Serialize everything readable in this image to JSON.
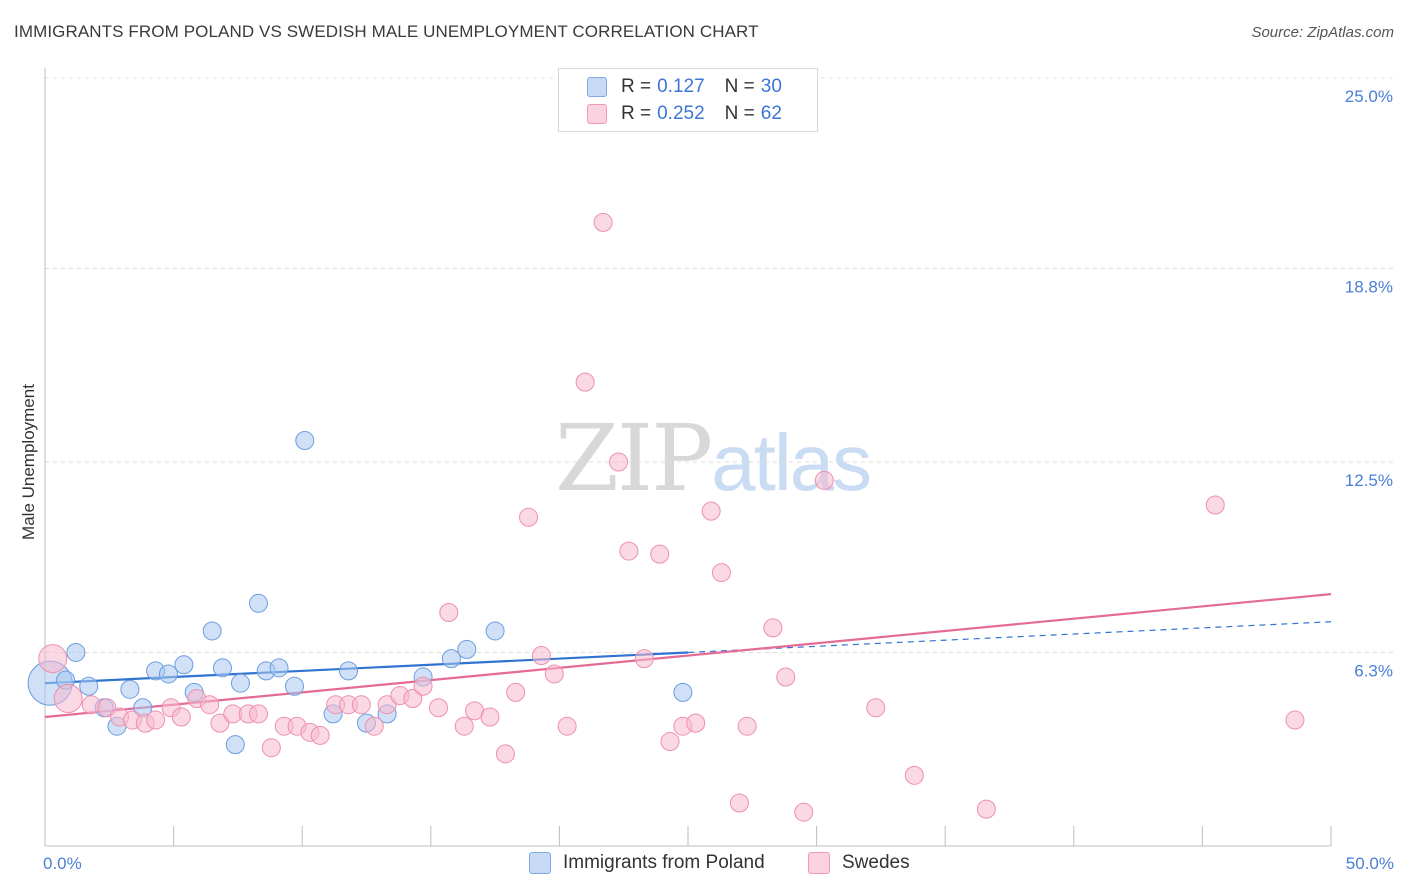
{
  "header": {
    "title": "IMMIGRANTS FROM POLAND VS SWEDISH MALE UNEMPLOYMENT CORRELATION CHART",
    "source": "Source: ZipAtlas.com"
  },
  "watermark": {
    "zip": "ZIP",
    "atlas": "atlas"
  },
  "legend": {
    "rows": [
      {
        "r_label": "R =",
        "r_value": "0.127",
        "n_label": "N =",
        "n_value": "30",
        "color": "#a9c8f0"
      },
      {
        "r_label": "R =",
        "r_value": "0.252",
        "n_label": "N =",
        "n_value": "62",
        "color": "#f7b9cd"
      }
    ]
  },
  "bottom_legend": [
    {
      "label": "Immigrants from Poland",
      "color": "#a9c8f0"
    },
    {
      "label": "Swedes",
      "color": "#f7b9cd"
    }
  ],
  "chart_data": {
    "type": "scatter",
    "title": "IMMIGRANTS FROM POLAND VS SWEDISH MALE UNEMPLOYMENT CORRELATION CHART",
    "xlabel": "",
    "ylabel": "Male Unemployment",
    "xlim": [
      0,
      50
    ],
    "ylim": [
      0,
      25
    ],
    "x_tick_labels": [
      {
        "value": 0,
        "label": "0.0%"
      },
      {
        "value": 50,
        "label": "50.0%"
      }
    ],
    "y_tick_labels": [
      {
        "value": 6.3,
        "label": "6.3%"
      },
      {
        "value": 12.5,
        "label": "12.5%"
      },
      {
        "value": 18.8,
        "label": "18.8%"
      },
      {
        "value": 25.0,
        "label": "25.0%"
      }
    ],
    "series": [
      {
        "name": "Immigrants from Poland",
        "color": "#a9c8f0",
        "stroke": "#6c9de0",
        "trend": {
          "x0": 0,
          "y0": 5.3,
          "x1": 25,
          "y1": 6.3,
          "dashed_to_x": 50,
          "dashed_to_y": 7.3,
          "color": "#2f74d0"
        },
        "points": [
          [
            0.2,
            5.3,
            22
          ],
          [
            0.8,
            5.4,
            9
          ],
          [
            1.2,
            6.3,
            9
          ],
          [
            1.7,
            5.2,
            9
          ],
          [
            2.3,
            4.5,
            9
          ],
          [
            2.8,
            3.9,
            9
          ],
          [
            3.3,
            5.1,
            9
          ],
          [
            3.8,
            4.5,
            9
          ],
          [
            4.3,
            5.7,
            9
          ],
          [
            4.8,
            5.6,
            9
          ],
          [
            5.4,
            5.9,
            9
          ],
          [
            5.8,
            5.0,
            9
          ],
          [
            6.5,
            7.0,
            9
          ],
          [
            6.9,
            5.8,
            9
          ],
          [
            7.4,
            3.3,
            9
          ],
          [
            7.6,
            5.3,
            9
          ],
          [
            8.3,
            7.9,
            9
          ],
          [
            8.6,
            5.7,
            9
          ],
          [
            9.1,
            5.8,
            9
          ],
          [
            9.7,
            5.2,
            9
          ],
          [
            10.1,
            13.2,
            9
          ],
          [
            11.2,
            4.3,
            9
          ],
          [
            11.8,
            5.7,
            9
          ],
          [
            12.5,
            4.0,
            9
          ],
          [
            13.3,
            4.3,
            9
          ],
          [
            14.7,
            5.5,
            9
          ],
          [
            15.8,
            6.1,
            9
          ],
          [
            16.4,
            6.4,
            9
          ],
          [
            17.5,
            7.0,
            9
          ],
          [
            24.8,
            5.0,
            9
          ]
        ]
      },
      {
        "name": "Swedes",
        "color": "#f7b9cd",
        "stroke": "#ee8fae",
        "trend": {
          "x0": 0,
          "y0": 4.2,
          "x1": 50,
          "y1": 8.2,
          "color": "#e56b97"
        },
        "points": [
          [
            0.3,
            6.1,
            14
          ],
          [
            0.9,
            4.8,
            14
          ],
          [
            1.8,
            4.6,
            9
          ],
          [
            2.4,
            4.5,
            9
          ],
          [
            2.9,
            4.2,
            9
          ],
          [
            3.4,
            4.1,
            9
          ],
          [
            3.9,
            4.0,
            9
          ],
          [
            4.3,
            4.1,
            9
          ],
          [
            4.9,
            4.5,
            9
          ],
          [
            5.3,
            4.2,
            9
          ],
          [
            5.9,
            4.8,
            9
          ],
          [
            6.4,
            4.6,
            9
          ],
          [
            6.8,
            4.0,
            9
          ],
          [
            7.3,
            4.3,
            9
          ],
          [
            7.9,
            4.3,
            9
          ],
          [
            8.3,
            4.3,
            9
          ],
          [
            8.8,
            3.2,
            9
          ],
          [
            9.3,
            3.9,
            9
          ],
          [
            9.8,
            3.9,
            9
          ],
          [
            10.3,
            3.7,
            9
          ],
          [
            10.7,
            3.6,
            9
          ],
          [
            11.3,
            4.6,
            9
          ],
          [
            11.8,
            4.6,
            9
          ],
          [
            12.3,
            4.6,
            9
          ],
          [
            12.8,
            3.9,
            9
          ],
          [
            13.3,
            4.6,
            9
          ],
          [
            13.8,
            4.9,
            9
          ],
          [
            14.3,
            4.8,
            9
          ],
          [
            14.7,
            5.2,
            9
          ],
          [
            15.3,
            4.5,
            9
          ],
          [
            15.7,
            7.6,
            9
          ],
          [
            16.3,
            3.9,
            9
          ],
          [
            16.7,
            4.4,
            9
          ],
          [
            17.3,
            4.2,
            9
          ],
          [
            17.9,
            3.0,
            9
          ],
          [
            18.3,
            5.0,
            9
          ],
          [
            18.8,
            10.7,
            9
          ],
          [
            19.3,
            6.2,
            9
          ],
          [
            19.8,
            5.6,
            9
          ],
          [
            20.3,
            3.9,
            9
          ],
          [
            21.0,
            15.1,
            9
          ],
          [
            21.7,
            20.3,
            9
          ],
          [
            22.3,
            12.5,
            9
          ],
          [
            22.7,
            9.6,
            9
          ],
          [
            23.3,
            6.1,
            9
          ],
          [
            23.9,
            9.5,
            9
          ],
          [
            24.3,
            3.4,
            9
          ],
          [
            24.8,
            3.9,
            9
          ],
          [
            25.3,
            4.0,
            9
          ],
          [
            25.9,
            10.9,
            9
          ],
          [
            26.3,
            8.9,
            9
          ],
          [
            27.0,
            1.4,
            9
          ],
          [
            27.3,
            3.9,
            9
          ],
          [
            28.3,
            7.1,
            9
          ],
          [
            28.8,
            5.5,
            9
          ],
          [
            29.5,
            1.1,
            9
          ],
          [
            30.3,
            11.9,
            9
          ],
          [
            32.3,
            4.5,
            9
          ],
          [
            33.8,
            2.3,
            9
          ],
          [
            36.6,
            1.2,
            9
          ],
          [
            45.5,
            11.1,
            9
          ],
          [
            48.6,
            4.1,
            9
          ]
        ]
      }
    ]
  }
}
